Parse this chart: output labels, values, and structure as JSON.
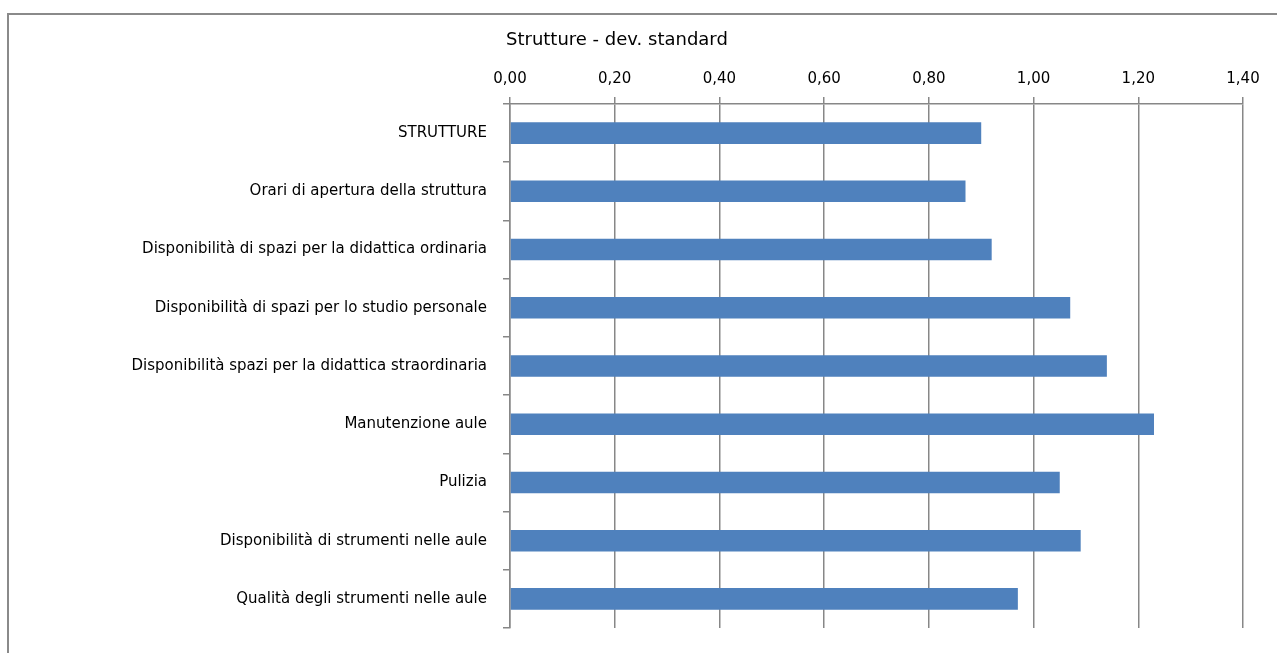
{
  "chart_data": {
    "type": "bar",
    "orientation": "horizontal",
    "title": "Strutture - dev. standard",
    "categories": [
      "STRUTTURE",
      "Orari di apertura della struttura",
      "Disponibilità di spazi per la didattica ordinaria",
      "Disponibilità di spazi per lo studio personale",
      "Disponibilità spazi per la didattica straordinaria",
      "Manutenzione aule",
      "Pulizia",
      "Disponibilità di strumenti nelle aule",
      "Qualità degli strumenti nelle aule"
    ],
    "values": [
      0.9,
      0.87,
      0.92,
      1.07,
      1.14,
      1.23,
      1.05,
      1.09,
      0.97
    ],
    "color": "#4f81bd",
    "xlim": [
      0,
      1.4
    ],
    "xticks": [
      {
        "value": 0,
        "label": "0,00"
      },
      {
        "value": 0.2,
        "label": "0,20"
      },
      {
        "value": 0.4,
        "label": "0,40"
      },
      {
        "value": 0.6,
        "label": "0,60"
      },
      {
        "value": 0.8,
        "label": "0,80"
      },
      {
        "value": 1.0,
        "label": "1,00"
      },
      {
        "value": 1.2,
        "label": "1,20"
      },
      {
        "value": 1.4,
        "label": "1,40"
      }
    ],
    "grid": "x"
  }
}
